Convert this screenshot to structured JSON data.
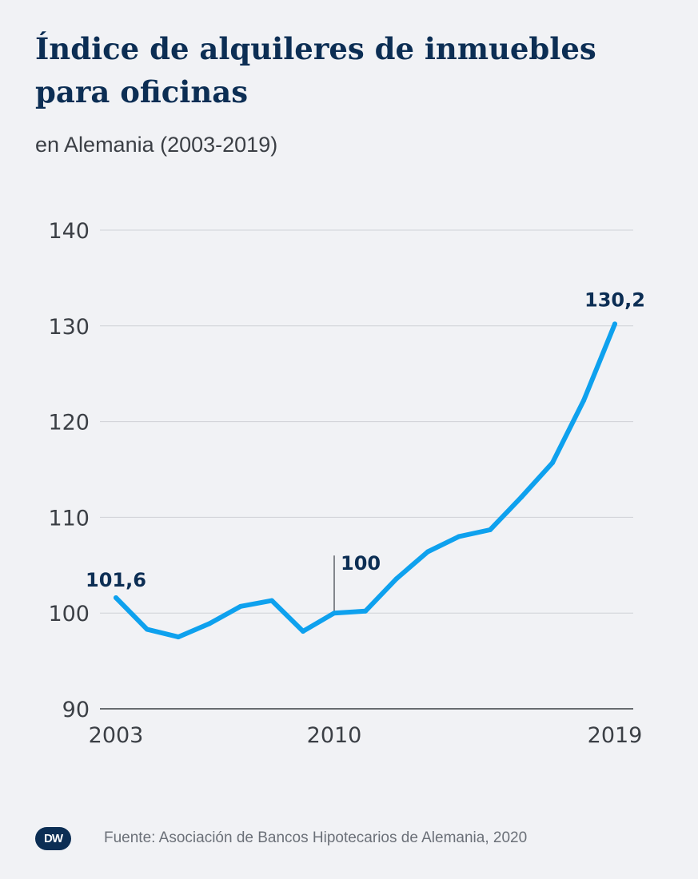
{
  "title": {
    "line1": "Índice de alquileres de inmuebles",
    "line2": "para oficinas"
  },
  "subtitle": "en Alemania (2003-2019)",
  "footer": {
    "logo_text": "DW",
    "source": "Fuente: Asociación de Bancos Hipotecarios de Alemania, 2020"
  },
  "colors": {
    "line": "#0ea1ee",
    "grid": "#cfd1d6",
    "axis": "#3b3f45",
    "label": "#0c2e54"
  },
  "chart_data": {
    "type": "line",
    "title": "Índice de alquileres de inmuebles para oficinas",
    "subtitle": "en Alemania (2003-2019)",
    "xlabel": "",
    "ylabel": "",
    "x": [
      2003,
      2004,
      2005,
      2006,
      2007,
      2008,
      2009,
      2010,
      2011,
      2012,
      2013,
      2014,
      2015,
      2016,
      2017,
      2018,
      2019
    ],
    "values": [
      101.6,
      98.3,
      97.5,
      98.9,
      100.7,
      101.3,
      98.1,
      100.0,
      100.2,
      103.6,
      106.4,
      108.0,
      108.7,
      112.1,
      115.7,
      122.2,
      130.2
    ],
    "xlim": [
      2003,
      2019
    ],
    "ylim": [
      90,
      140
    ],
    "y_ticks": [
      "90",
      "100",
      "110",
      "120",
      "130",
      "140"
    ],
    "x_ticks": [
      {
        "value": 2003,
        "label": "2003"
      },
      {
        "value": 2010,
        "label": "2010"
      },
      {
        "value": 2019,
        "label": "2019"
      }
    ],
    "annotations": [
      {
        "x": 2003,
        "y": 101.6,
        "label": "101,6"
      },
      {
        "x": 2010,
        "y": 100.0,
        "label": "100"
      },
      {
        "x": 2019,
        "y": 130.2,
        "label": "130,2"
      }
    ],
    "grid": true,
    "legend": "none"
  }
}
